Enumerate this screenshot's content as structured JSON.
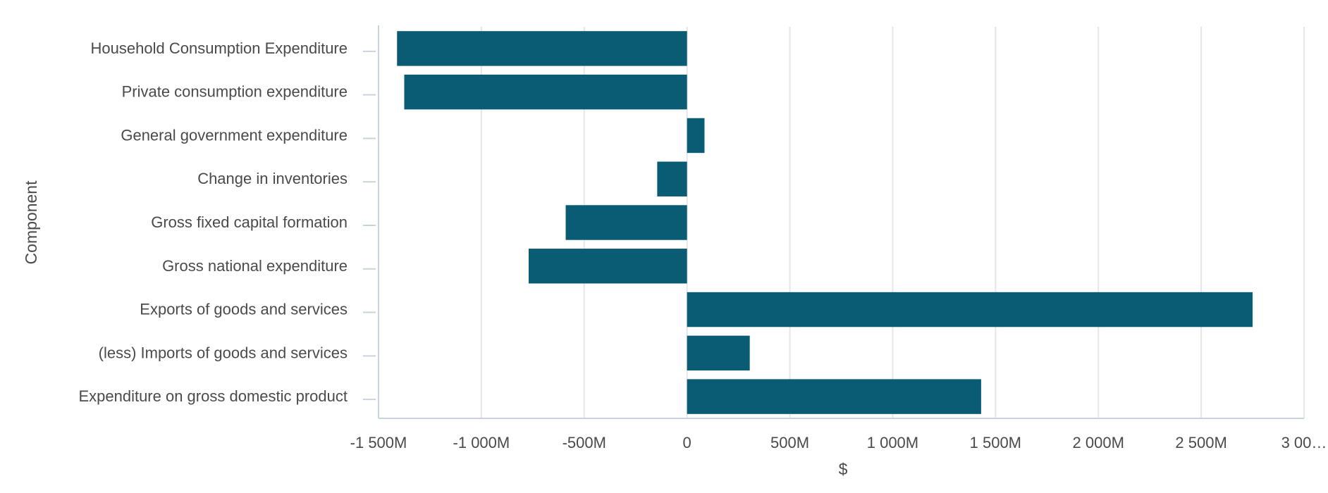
{
  "chart_data": {
    "type": "bar",
    "orientation": "horizontal",
    "title": "",
    "xlabel": "$",
    "ylabel": "Component",
    "categories": [
      "Household Consumption Expenditure",
      "Private consumption expenditure",
      "General government expenditure",
      "Change in inventories",
      "Gross fixed capital formation",
      "Gross national expenditure",
      "Exports of goods and services",
      "(less) Imports of goods and services",
      "Expenditure on gross domestic product"
    ],
    "values": [
      -1410,
      -1375,
      85,
      -145,
      -590,
      -770,
      2750,
      305,
      1430
    ],
    "xlim": [
      -1500,
      3000
    ],
    "xticks": [
      -1500,
      -1000,
      -500,
      0,
      500,
      1000,
      1500,
      2000,
      2500,
      3000
    ],
    "xtick_labels": [
      "-1 500M",
      "-1 000M",
      "-500M",
      "0",
      "500M",
      "1 000M",
      "1 500M",
      "2 000M",
      "2 500M",
      "3 00…"
    ],
    "unit": "M",
    "grid": true,
    "bar_color": "#0a5c74",
    "grid_color": "#e3e7ec",
    "axis_color": "#c9d3e0"
  }
}
